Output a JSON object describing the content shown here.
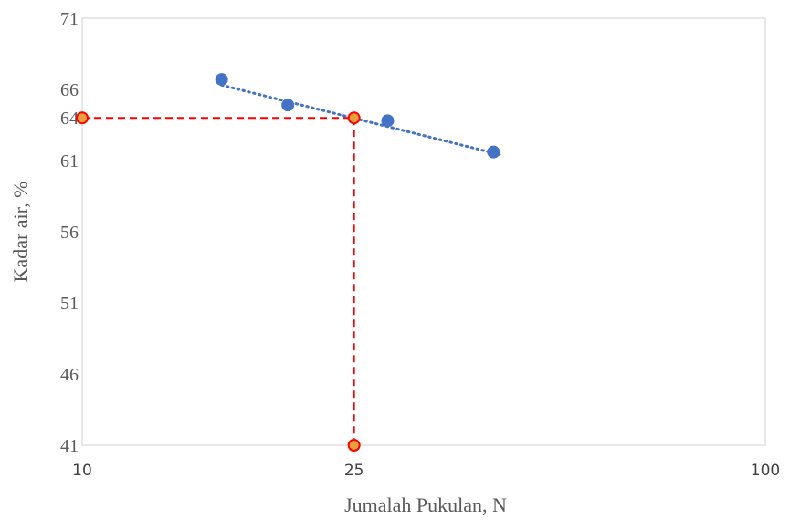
{
  "chart_data": {
    "type": "scatter",
    "title": "",
    "xlabel": "Jumalah Pukulan, N",
    "ylabel": "Kadar air, %",
    "x_scale": "log",
    "xlim": [
      10,
      100
    ],
    "ylim": [
      41,
      71
    ],
    "x_ticks": [
      "10",
      "25",
      "100"
    ],
    "y_ticks": [
      "41",
      "46",
      "51",
      "56",
      "61",
      "64",
      "66",
      "71"
    ],
    "series": [
      {
        "name": "",
        "marker_color": "#4472c4",
        "points": [
          {
            "x": 16,
            "y": 66.7
          },
          {
            "x": 20,
            "y": 64.9
          },
          {
            "x": 28,
            "y": 63.8
          },
          {
            "x": 40,
            "y": 61.6
          }
        ]
      }
    ],
    "trendline": {
      "style": "dotted",
      "color": "#4472c4",
      "from": {
        "x": 16,
        "y": 66.3
      },
      "to": {
        "x": 41,
        "y": 61.4
      }
    },
    "reference_lines": {
      "style": "dashed",
      "color": "#ff0000",
      "x": 25,
      "y": 64,
      "marker_fill": "#e8a03c",
      "points": [
        {
          "x": 10,
          "y": 64
        },
        {
          "x": 25,
          "y": 64
        },
        {
          "x": 25,
          "y": 41
        }
      ]
    },
    "grid": false,
    "legend": "none"
  }
}
